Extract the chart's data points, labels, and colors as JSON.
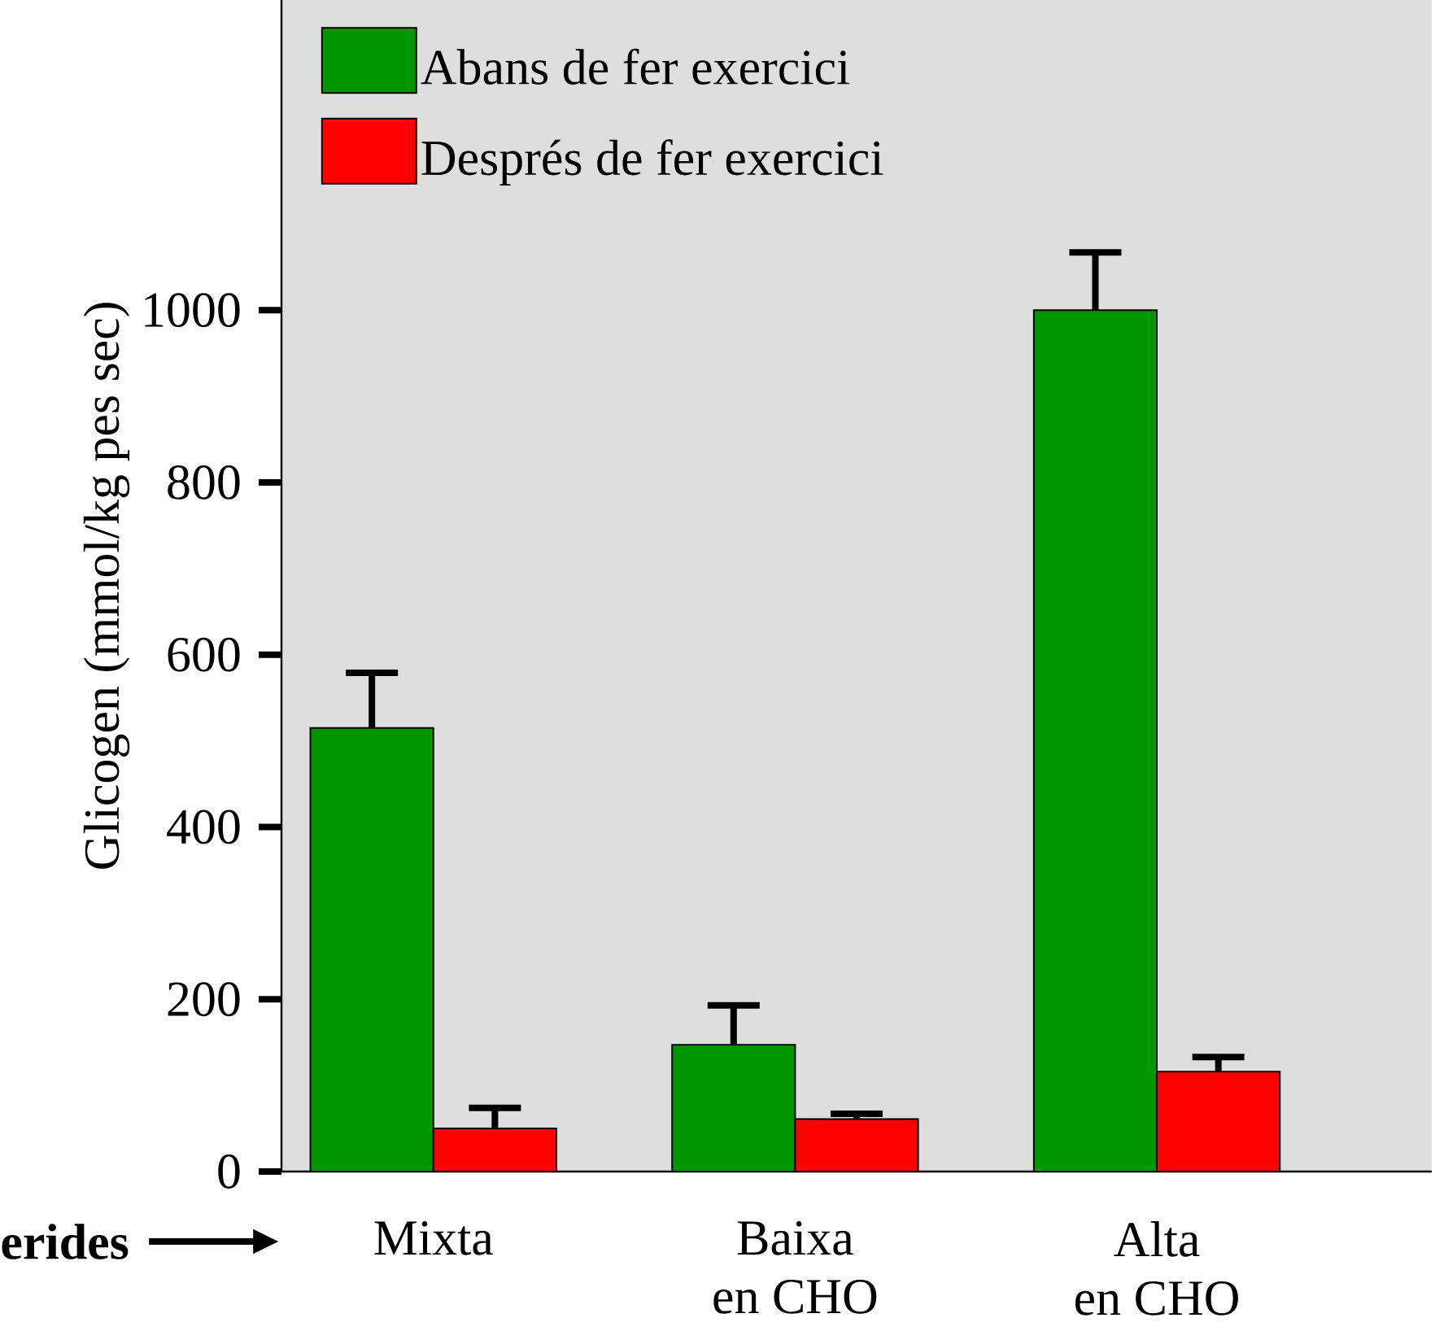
{
  "chart_data": {
    "type": "bar",
    "ylabel": "Glicogen (mmol/kg pes sec)",
    "categories": [
      "Mixta",
      "Baixa\nen CHO",
      "Alta\nen CHO"
    ],
    "series": [
      {
        "name": "Abans de fer exercici",
        "color": "#009600",
        "values": [
          515,
          147,
          1000
        ],
        "errors": [
          [
            515,
            579
          ],
          [
            147,
            193
          ],
          [
            1000,
            1067
          ]
        ]
      },
      {
        "name": "Després de fer exercici",
        "color": "#ff0000",
        "values": [
          50,
          61,
          116
        ],
        "errors": [
          [
            50,
            74
          ],
          [
            61,
            67
          ],
          [
            116,
            133
          ]
        ]
      }
    ],
    "ylim": [
      0,
      1360
    ],
    "yticks": [
      0,
      200,
      400,
      600,
      800,
      1000
    ],
    "legend": "top left",
    "grid": false,
    "annotations": [
      "**erides**"
    ]
  }
}
